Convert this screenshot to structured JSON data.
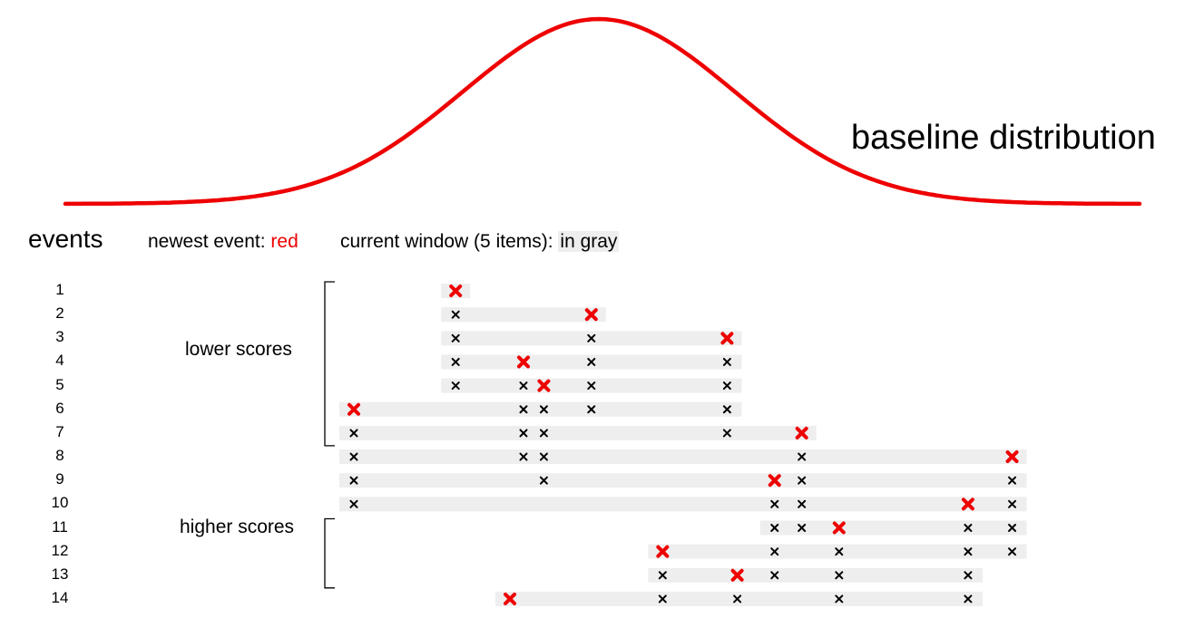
{
  "labels": {
    "title": "baseline distribution",
    "events_heading": "events",
    "newest_prefix": "newest event: ",
    "newest_color_word": "red",
    "window_prefix": "current window (5 items): ",
    "window_gray_word": "in gray",
    "lower_group": "lower scores",
    "higher_group": "higher scores"
  },
  "colors": {
    "curve": "#ee0000",
    "newest_mark": "#ee0000",
    "window_mark": "#000000",
    "window_band": "#eeeeee",
    "bracket": "#000000"
  },
  "distribution": {
    "type": "normal-curve",
    "shape": "bell"
  },
  "events": [
    {
      "label": "1",
      "window": [
        3
      ],
      "newest": 3
    },
    {
      "label": "2",
      "window": [
        3,
        7
      ],
      "newest": 7
    },
    {
      "label": "3",
      "window": [
        3,
        7,
        11
      ],
      "newest": 11
    },
    {
      "label": "4",
      "window": [
        3,
        5,
        7,
        11
      ],
      "newest": 5
    },
    {
      "label": "5",
      "window": [
        3,
        5,
        5.6,
        7,
        11
      ],
      "newest": 5.6
    },
    {
      "label": "6",
      "window": [
        0,
        5,
        5.6,
        7,
        11
      ],
      "newest": 0
    },
    {
      "label": "7",
      "window": [
        0,
        5,
        5.6,
        11,
        13.2
      ],
      "newest": 13.2
    },
    {
      "label": "8",
      "window": [
        0,
        5,
        5.6,
        13.2,
        19.4
      ],
      "newest": 19.4
    },
    {
      "label": "9",
      "window": [
        0,
        5.6,
        12.4,
        13.2,
        19.4
      ],
      "newest": 12.4
    },
    {
      "label": "10",
      "window": [
        0,
        12.4,
        13.2,
        18.1,
        19.4
      ],
      "newest": 18.1
    },
    {
      "label": "11",
      "window": [
        12.4,
        13.2,
        14.3,
        18.1,
        19.4
      ],
      "newest": 14.3
    },
    {
      "label": "12",
      "window": [
        9.1,
        12.4,
        14.3,
        18.1,
        19.4
      ],
      "newest": 9.1
    },
    {
      "label": "13",
      "window": [
        9.1,
        11.3,
        12.4,
        14.3,
        18.1
      ],
      "newest": 11.3
    },
    {
      "label": "14",
      "window": [
        4.6,
        9.1,
        11.3,
        14.3,
        18.1
      ],
      "newest": 4.6
    }
  ],
  "groups": [
    {
      "name_key": "lower_group",
      "from_event": 1,
      "to_event": 7
    },
    {
      "name_key": "higher_group",
      "from_event": 11,
      "to_event": 13
    }
  ]
}
